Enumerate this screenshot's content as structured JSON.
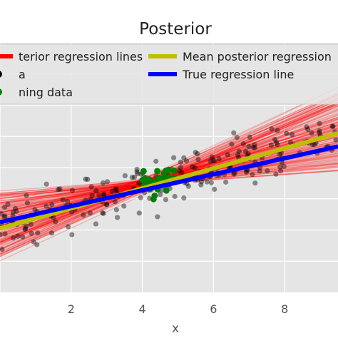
{
  "chart_data": {
    "type": "line",
    "title": "Posterior",
    "xlabel": "x",
    "ylabel": "",
    "xlim": [
      0.0,
      9.5
    ],
    "ylim": [
      -4.0,
      4.0
    ],
    "grid": true,
    "background": "#e5e5e5",
    "x_ticks": [
      2,
      4,
      6,
      8
    ],
    "legend": {
      "placement": "top",
      "entries": [
        {
          "label": "terior regression lines",
          "color": "#ff0000",
          "kind": "line"
        },
        {
          "label": "Mean posterior regression",
          "color": "#bfbf00",
          "kind": "line"
        },
        {
          "label": "a",
          "color": "#000000",
          "kind": "marker"
        },
        {
          "label": "True regression line",
          "color": "#0000ff",
          "kind": "line"
        },
        {
          "label": "ning data",
          "color": "#008000",
          "kind": "marker"
        }
      ]
    },
    "series": [
      {
        "name": "Mean posterior regression",
        "color": "#bfbf00",
        "x": [
          0.0,
          9.5
        ],
        "y": [
          -1.95,
          1.1
        ]
      },
      {
        "name": "True regression line",
        "color": "#0000ff",
        "x": [
          0.0,
          9.5
        ],
        "y": [
          -1.75,
          0.68
        ]
      }
    ],
    "posterior_lines": {
      "name": "terior regression lines",
      "color": "#ff0000",
      "pivot": [
        4.3,
        -0.45
      ],
      "slope_range": [
        0.08,
        0.55
      ],
      "count": 150
    },
    "data_points": {
      "name": "a",
      "color": "#000000",
      "x_range": [
        0.0,
        9.5
      ],
      "noise": 0.6,
      "count": 260
    },
    "training_points": {
      "name": "ning data",
      "color": "#008000",
      "x_range": [
        4.0,
        5.0
      ],
      "noise": 0.35,
      "count": 35
    }
  }
}
